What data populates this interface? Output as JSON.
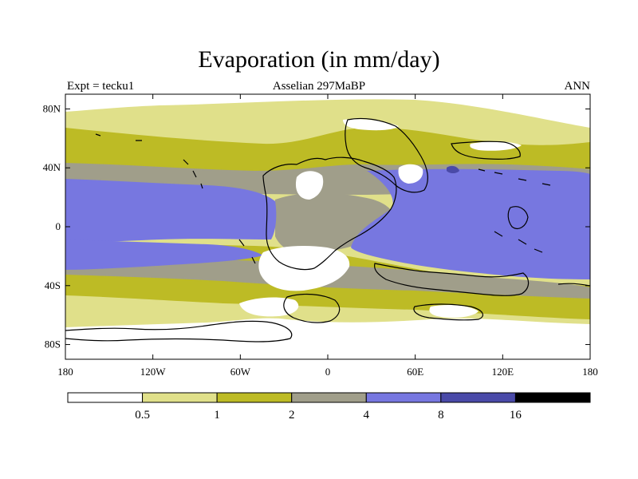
{
  "title": "Evaporation (in mm/day)",
  "left_string": "Expt = tecku1",
  "center_string": "Asselian 297MaBP",
  "right_string": "ANN",
  "x_axis": {
    "ticks": [
      {
        "lon": -180,
        "label": "180"
      },
      {
        "lon": -120,
        "label": "120W"
      },
      {
        "lon": -60,
        "label": "60W"
      },
      {
        "lon": 0,
        "label": "0"
      },
      {
        "lon": 60,
        "label": "60E"
      },
      {
        "lon": 120,
        "label": "120E"
      },
      {
        "lon": 180,
        "label": "180"
      }
    ],
    "range": [
      -180,
      180
    ]
  },
  "y_axis": {
    "ticks": [
      {
        "lat": 80,
        "label": "80N"
      },
      {
        "lat": 40,
        "label": "40N"
      },
      {
        "lat": 0,
        "label": "0"
      },
      {
        "lat": -40,
        "label": "40S"
      },
      {
        "lat": -80,
        "label": "80S"
      }
    ],
    "range": [
      -90,
      90
    ]
  },
  "colorbar": {
    "colors": [
      "#ffffff",
      "#e0e08a",
      "#bdbb25",
      "#a09e8a",
      "#7777e0",
      "#4a4aa8",
      "#000000"
    ],
    "levels": [
      "0.5",
      "1",
      "2",
      "4",
      "8",
      "16"
    ]
  }
}
